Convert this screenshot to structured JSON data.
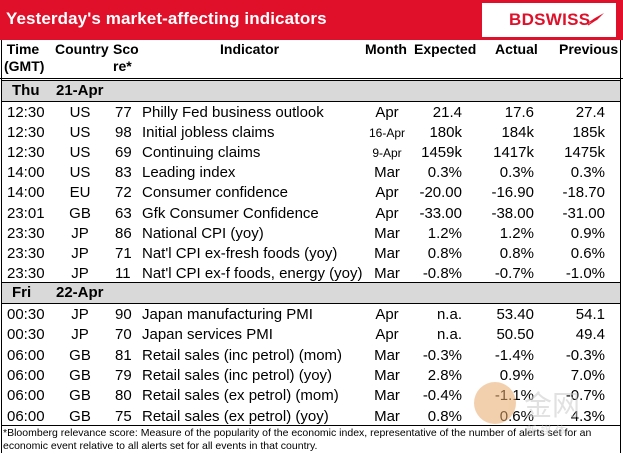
{
  "header": {
    "title": "Yesterday's market-affecting indicators",
    "logo": "BDSWISS",
    "brand_color": "#e0102a"
  },
  "columns": {
    "time": [
      "Time",
      "(GMT)"
    ],
    "country": "Country",
    "score": [
      "Sco",
      "re*"
    ],
    "indicator": "Indicator",
    "month": "Month",
    "expected": "Expected",
    "actual": "Actual",
    "previous": "Previous"
  },
  "days": [
    {
      "weekday": "Thu",
      "date": "21-Apr"
    },
    {
      "weekday": "Fri",
      "date": "22-Apr"
    }
  ],
  "rows": [
    {
      "time": "12:30",
      "country": "US",
      "score": "77",
      "indicator": "Philly Fed business outlook",
      "month": "Apr",
      "expected": "21.4",
      "actual": "17.6",
      "previous": "27.4"
    },
    {
      "time": "12:30",
      "country": "US",
      "score": "98",
      "indicator": "Initial jobless claims",
      "month": "16-Apr",
      "expected": "180k",
      "actual": "184k",
      "previous": "185k"
    },
    {
      "time": "12:30",
      "country": "US",
      "score": "69",
      "indicator": "Continuing claims",
      "month": "9-Apr",
      "expected": "1459k",
      "actual": "1417k",
      "previous": "1475k"
    },
    {
      "time": "14:00",
      "country": "US",
      "score": "83",
      "indicator": "Leading index",
      "month": "Mar",
      "expected": "0.3%",
      "actual": "0.3%",
      "previous": "0.3%"
    },
    {
      "time": "14:00",
      "country": "EU",
      "score": "72",
      "indicator": "Consumer confidence",
      "month": "Apr",
      "expected": "-20.00",
      "actual": "-16.90",
      "previous": "-18.70"
    },
    {
      "time": "23:01",
      "country": "GB",
      "score": "63",
      "indicator": "Gfk Consumer Confidence",
      "month": "Apr",
      "expected": "-33.00",
      "actual": "-38.00",
      "previous": "-31.00"
    },
    {
      "time": "23:30",
      "country": "JP",
      "score": "86",
      "indicator": "National CPI (yoy)",
      "month": "Mar",
      "expected": "1.2%",
      "actual": "1.2%",
      "previous": "0.9%"
    },
    {
      "time": "23:30",
      "country": "JP",
      "score": "71",
      "indicator": "Nat'l CPI ex-fresh foods (yoy)",
      "month": "Mar",
      "expected": "0.8%",
      "actual": "0.8%",
      "previous": "0.6%"
    },
    {
      "time": "23:30",
      "country": "JP",
      "score": "11",
      "indicator": "Nat'l CPI ex-f foods, energy (yoy)",
      "month": "Mar",
      "expected": "-0.8%",
      "actual": "-0.7%",
      "previous": "-1.0%"
    },
    {
      "time": "00:30",
      "country": "JP",
      "score": "90",
      "indicator": "Japan manufacturing PMI",
      "month": "Apr",
      "expected": "n.a.",
      "actual": "53.40",
      "previous": "54.1"
    },
    {
      "time": "00:30",
      "country": "JP",
      "score": "70",
      "indicator": "Japan services PMI",
      "month": "Apr",
      "expected": "n.a.",
      "actual": "50.50",
      "previous": "49.4"
    },
    {
      "time": "06:00",
      "country": "GB",
      "score": "81",
      "indicator": "Retail sales (inc petrol) (mom)",
      "month": "Mar",
      "expected": "-0.3%",
      "actual": "-1.4%",
      "previous": "-0.3%"
    },
    {
      "time": "06:00",
      "country": "GB",
      "score": "79",
      "indicator": "Retail sales (inc petrol) (yoy)",
      "month": "Mar",
      "expected": "2.8%",
      "actual": "0.9%",
      "previous": "7.0%"
    },
    {
      "time": "06:00",
      "country": "GB",
      "score": "80",
      "indicator": "Retail sales (ex petrol) (mom)",
      "month": "Mar",
      "expected": "-0.4%",
      "actual": "-1.1%",
      "previous": "-0.7%"
    },
    {
      "time": "06:00",
      "country": "GB",
      "score": "75",
      "indicator": "Retail sales (ex petrol) (yoy)",
      "month": "Mar",
      "expected": "0.8%",
      "actual": "0.6%",
      "previous": "4.3%"
    }
  ],
  "footnote": "*Bloomberg relevance score:  Measure of the popularity of the economic index, representative of the number of alerts set for an economic event relative to all alerts set for all events in that country.",
  "watermark": {
    "text": "金网",
    "subtext": "新 媒 体"
  }
}
